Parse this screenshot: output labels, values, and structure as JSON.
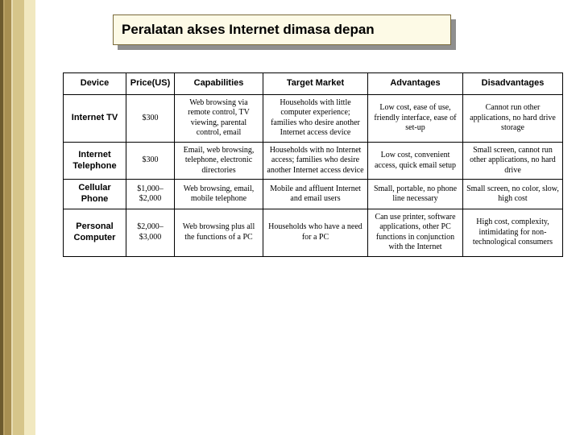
{
  "title": "Peralatan akses Internet dimasa depan",
  "colors": {
    "title_bg": "#fdfae6",
    "title_border": "#7a6a3a",
    "shadow": "#8f8f8f",
    "border_stripes": [
      "#6d5a2e",
      "#a88f52",
      "#d6c58a",
      "#f1e8c0"
    ],
    "table_border": "#000000",
    "page_bg": "#ffffff"
  },
  "table": {
    "columns": [
      "Device",
      "Price(US)",
      "Capabilities",
      "Target Market",
      "Advantages",
      "Disadvantages"
    ],
    "rows": [
      {
        "device": "Internet TV",
        "price": "$300",
        "capabilities": "Web browsing via remote control, TV viewing, parental control, email",
        "target": "Households with little computer experience; families who desire another Internet access device",
        "advantages": "Low cost, ease of use, friendly interface, ease of set-up",
        "disadvantages": "Cannot run other applications, no hard drive storage"
      },
      {
        "device": "Internet Telephone",
        "price": "$300",
        "capabilities": "Email, web browsing, telephone, electronic directories",
        "target": "Households with no Internet access; families who desire another Internet access device",
        "advantages": "Low cost, convenient access, quick email setup",
        "disadvantages": "Small screen, cannot run other applications, no hard drive"
      },
      {
        "device": "Cellular Phone",
        "price": "$1,000–$2,000",
        "capabilities": "Web browsing, email, mobile telephone",
        "target": "Mobile and affluent Internet and email users",
        "advantages": "Small, portable, no phone line necessary",
        "disadvantages": "Small screen, no color, slow, high cost"
      },
      {
        "device": "Personal Computer",
        "price": "$2,000–$3,000",
        "capabilities": "Web browsing plus all the functions of a PC",
        "target": "Households who have a need for a PC",
        "advantages": "Can use printer, software applications, other PC functions in conjunction with the Internet",
        "disadvantages": "High cost, complexity, intimidating for non-technological consumers"
      }
    ]
  }
}
